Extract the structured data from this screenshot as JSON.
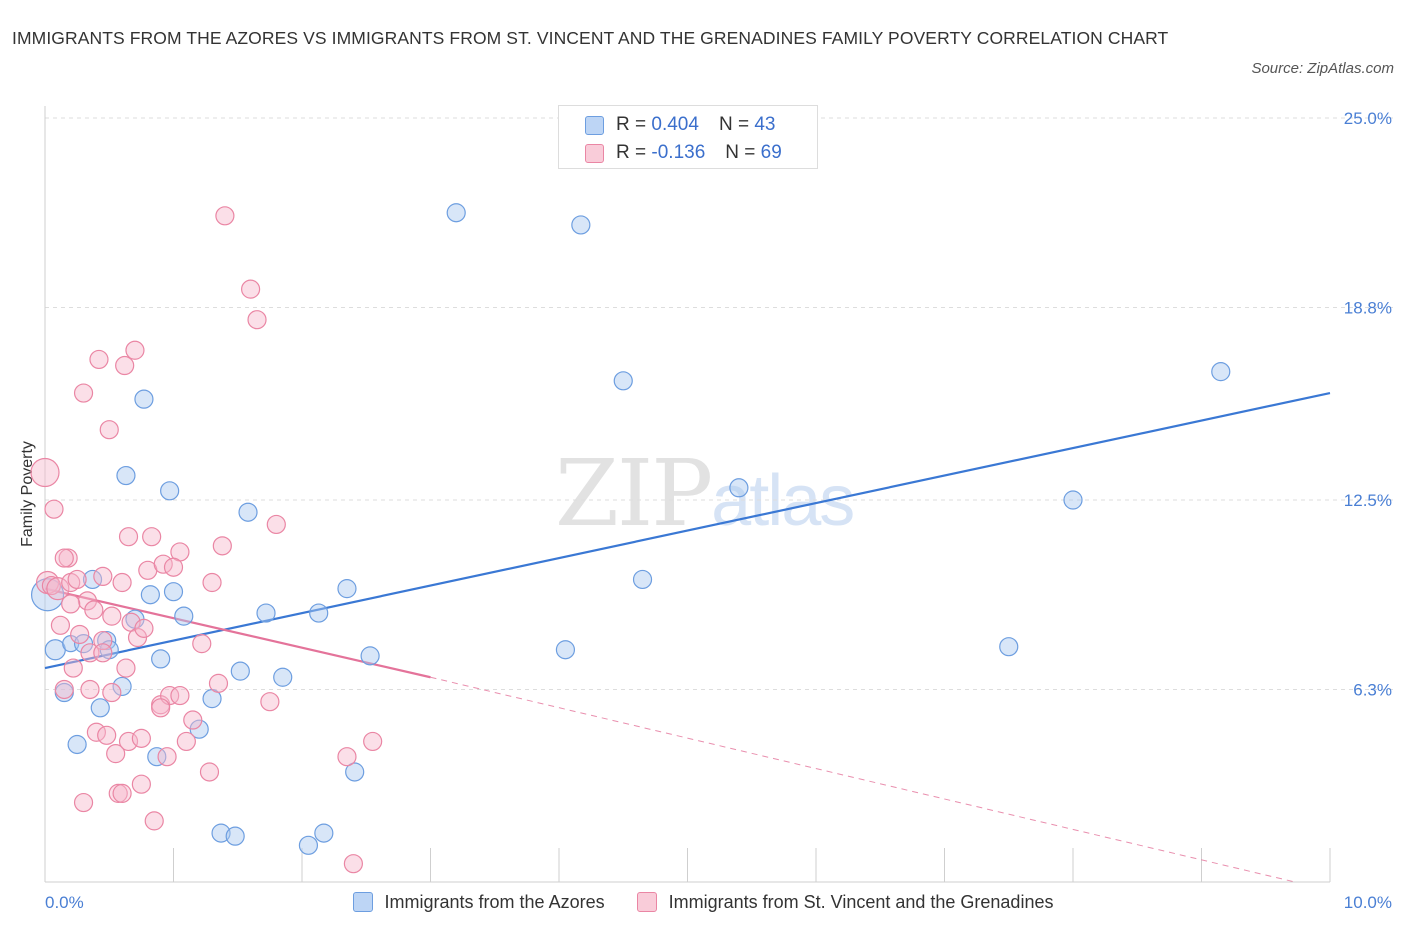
{
  "title": "IMMIGRANTS FROM THE AZORES VS IMMIGRANTS FROM ST. VINCENT AND THE GRENADINES FAMILY POVERTY CORRELATION CHART",
  "source": "Source: ZipAtlas.com",
  "watermark": {
    "zip": "ZIP",
    "atlas": "atlas"
  },
  "legend_top": [
    {
      "r_label": "R = ",
      "r_value": "0.404",
      "n_label": "N = ",
      "n_value": "43"
    },
    {
      "r_label": "R = ",
      "r_value": "-0.136",
      "n_label": "N = ",
      "n_value": "69"
    }
  ],
  "colors": {
    "blue_fill": "#a9c8f0",
    "blue_stroke": "#6d9ee0",
    "blue_line": "#3a78d4",
    "pink_fill": "#f6b8cb",
    "pink_stroke": "#ea86a4",
    "pink_line": "#e4739a",
    "axis_text": "#4a7fd4",
    "grid": "#dddddd"
  },
  "chart_data": {
    "type": "scatter",
    "ylabel": "Family Poverty",
    "xlim": [
      0,
      10
    ],
    "ylim": [
      0,
      25
    ],
    "x_tick_labels": [
      "0.0%",
      "10.0%"
    ],
    "y_ticks": [
      {
        "value": 6.3,
        "label": "6.3%"
      },
      {
        "value": 12.5,
        "label": "12.5%"
      },
      {
        "value": 18.8,
        "label": "18.8%"
      },
      {
        "value": 25.0,
        "label": "25.0%"
      }
    ],
    "grid": true,
    "legend_position": "bottom",
    "series": [
      {
        "name": "Immigrants from the Azores",
        "color": "blue",
        "trend": {
          "x": [
            0,
            10
          ],
          "y": [
            7.0,
            16.0
          ],
          "dashed_beyond": null
        },
        "points": [
          [
            0.02,
            9.4,
            16
          ],
          [
            0.08,
            7.6,
            10
          ],
          [
            0.15,
            6.2,
            9
          ],
          [
            0.2,
            7.8,
            8
          ],
          [
            0.25,
            4.5,
            9
          ],
          [
            0.3,
            7.8,
            9
          ],
          [
            0.37,
            9.9,
            9
          ],
          [
            0.43,
            5.7,
            9
          ],
          [
            0.48,
            7.9,
            9
          ],
          [
            0.5,
            7.6,
            9
          ],
          [
            0.6,
            6.4,
            9
          ],
          [
            0.63,
            13.3,
            9
          ],
          [
            0.7,
            8.6,
            9
          ],
          [
            0.77,
            15.8,
            9
          ],
          [
            0.82,
            9.4,
            9
          ],
          [
            0.87,
            4.1,
            9
          ],
          [
            0.9,
            7.3,
            9
          ],
          [
            0.97,
            12.8,
            9
          ],
          [
            1.0,
            9.5,
            9
          ],
          [
            1.08,
            8.7,
            9
          ],
          [
            1.2,
            5.0,
            9
          ],
          [
            1.3,
            6.0,
            9
          ],
          [
            1.37,
            1.6,
            9
          ],
          [
            1.48,
            1.5,
            9
          ],
          [
            1.52,
            6.9,
            9
          ],
          [
            1.58,
            12.1,
            9
          ],
          [
            1.72,
            8.8,
            9
          ],
          [
            1.85,
            6.7,
            9
          ],
          [
            2.05,
            1.2,
            9
          ],
          [
            2.13,
            8.8,
            9
          ],
          [
            2.17,
            1.6,
            9
          ],
          [
            2.35,
            9.6,
            9
          ],
          [
            2.41,
            3.6,
            9
          ],
          [
            2.53,
            7.4,
            9
          ],
          [
            3.2,
            21.9,
            9
          ],
          [
            4.05,
            7.6,
            9
          ],
          [
            4.17,
            21.5,
            9
          ],
          [
            4.5,
            16.4,
            9
          ],
          [
            4.65,
            9.9,
            9
          ],
          [
            5.4,
            12.9,
            9
          ],
          [
            7.5,
            7.7,
            9
          ],
          [
            8.0,
            12.5,
            9
          ],
          [
            9.15,
            16.7,
            9
          ]
        ]
      },
      {
        "name": "Immigrants from St. Vincent and the Grenadines",
        "color": "pink",
        "trend": {
          "x": [
            0,
            3.0
          ],
          "y": [
            9.6,
            6.7
          ],
          "dashed_to": [
            10,
            -0.1
          ]
        },
        "points": [
          [
            0.0,
            13.4,
            14
          ],
          [
            0.02,
            9.8,
            11
          ],
          [
            0.05,
            9.7,
            9
          ],
          [
            0.07,
            12.2,
            9
          ],
          [
            0.1,
            9.6,
            11
          ],
          [
            0.12,
            8.4,
            9
          ],
          [
            0.15,
            6.3,
            9
          ],
          [
            0.18,
            10.6,
            9
          ],
          [
            0.2,
            9.8,
            9
          ],
          [
            0.22,
            7.0,
            9
          ],
          [
            0.25,
            9.9,
            9
          ],
          [
            0.27,
            8.1,
            9
          ],
          [
            0.3,
            2.6,
            9
          ],
          [
            0.33,
            9.2,
            9
          ],
          [
            0.35,
            7.5,
            9
          ],
          [
            0.38,
            8.9,
            9
          ],
          [
            0.4,
            4.9,
            9
          ],
          [
            0.42,
            17.1,
            9
          ],
          [
            0.45,
            10.0,
            9
          ],
          [
            0.45,
            7.9,
            9
          ],
          [
            0.48,
            4.8,
            9
          ],
          [
            0.5,
            14.8,
            9
          ],
          [
            0.52,
            6.2,
            9
          ],
          [
            0.55,
            4.2,
            9
          ],
          [
            0.57,
            2.9,
            9
          ],
          [
            0.6,
            2.9,
            9
          ],
          [
            0.62,
            16.9,
            9
          ],
          [
            0.63,
            7.0,
            9
          ],
          [
            0.65,
            11.3,
            9
          ],
          [
            0.67,
            8.5,
            9
          ],
          [
            0.7,
            17.4,
            9
          ],
          [
            0.72,
            8.0,
            9
          ],
          [
            0.75,
            3.2,
            9
          ],
          [
            0.77,
            8.3,
            9
          ],
          [
            0.8,
            10.2,
            9
          ],
          [
            0.83,
            11.3,
            9
          ],
          [
            0.85,
            2.0,
            9
          ],
          [
            0.9,
            5.8,
            9
          ],
          [
            0.92,
            10.4,
            9
          ],
          [
            0.95,
            4.1,
            9
          ],
          [
            0.97,
            6.1,
            9
          ],
          [
            1.05,
            10.8,
            9
          ],
          [
            1.1,
            4.6,
            9
          ],
          [
            1.15,
            5.3,
            9
          ],
          [
            1.22,
            7.8,
            9
          ],
          [
            1.28,
            3.6,
            9
          ],
          [
            1.3,
            9.8,
            9
          ],
          [
            1.35,
            6.5,
            9
          ],
          [
            1.38,
            11.0,
            9
          ],
          [
            1.4,
            21.8,
            9
          ],
          [
            1.6,
            19.4,
            9
          ],
          [
            1.65,
            18.4,
            9
          ],
          [
            1.75,
            5.9,
            9
          ],
          [
            1.8,
            11.7,
            9
          ],
          [
            2.35,
            4.1,
            9
          ],
          [
            2.4,
            0.6,
            9
          ],
          [
            2.55,
            4.6,
            9
          ],
          [
            0.3,
            16.0,
            9
          ],
          [
            0.65,
            4.6,
            9
          ],
          [
            0.9,
            5.7,
            9
          ],
          [
            0.35,
            6.3,
            9
          ],
          [
            1.0,
            10.3,
            9
          ],
          [
            0.15,
            10.6,
            9
          ],
          [
            0.52,
            8.7,
            9
          ],
          [
            0.6,
            9.8,
            9
          ],
          [
            0.75,
            4.7,
            9
          ],
          [
            1.05,
            6.1,
            9
          ],
          [
            0.2,
            9.1,
            9
          ],
          [
            0.45,
            7.5,
            9
          ]
        ]
      }
    ]
  }
}
